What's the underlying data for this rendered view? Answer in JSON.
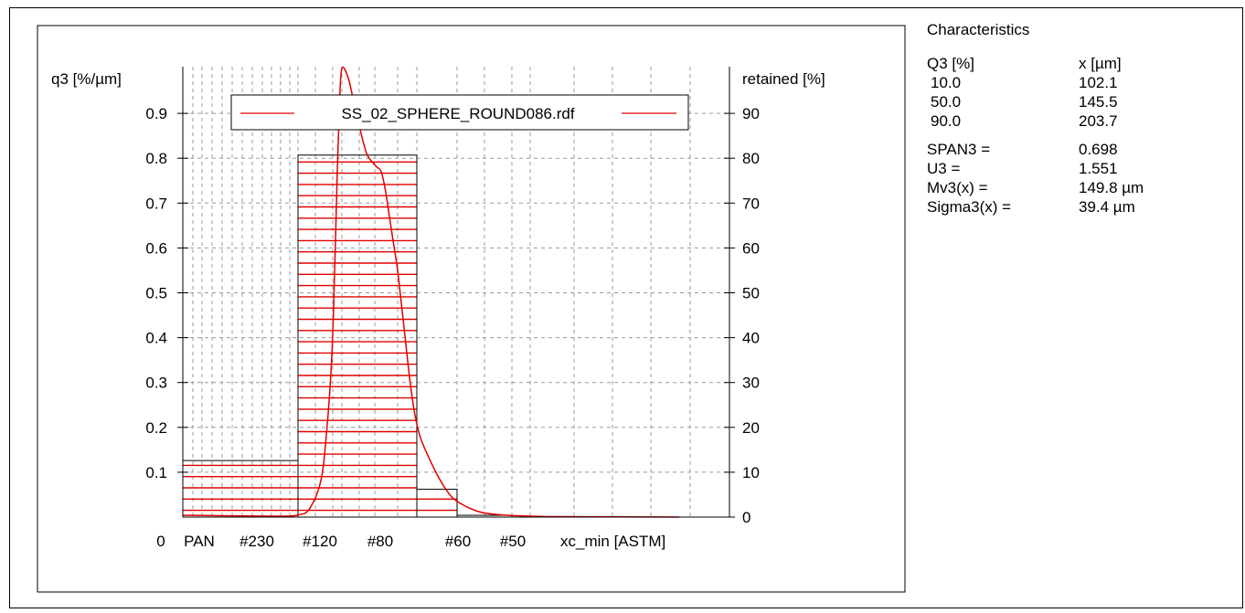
{
  "chart_data": {
    "type": "bar",
    "ylabel_left": "q3 [%/µm]",
    "ylabel_right": "retained [%]",
    "xlabel": "xc_min [ASTM]",
    "x_origin_label": "0",
    "left_ticks": [
      "0.1",
      "0.2",
      "0.3",
      "0.4",
      "0.5",
      "0.6",
      "0.7",
      "0.8",
      "0.9"
    ],
    "right_ticks": [
      "0",
      "10",
      "20",
      "30",
      "40",
      "50",
      "60",
      "70",
      "80",
      "90"
    ],
    "left_ylim": [
      0,
      1.0
    ],
    "right_ylim": [
      0,
      100
    ],
    "x_tick_labels": [
      "PAN",
      "#230",
      "#120",
      "#80",
      "#60",
      "#50"
    ],
    "bars_retained_percent": [
      {
        "from": "PAN",
        "to": "#120",
        "value": 12.6
      },
      {
        "from": "#120",
        "to": "#60",
        "value": 80.7
      },
      {
        "from": "#60",
        "to": "#50",
        "value": 6.2
      },
      {
        "from": "#50",
        "to": "end",
        "value": 0.4
      }
    ],
    "density_curve": {
      "name": "SS_02_SPHERE_ROUND086.rdf",
      "color": "#e00000",
      "x_particle_size_um": [
        0,
        60,
        75,
        85,
        95,
        100,
        105,
        110,
        115,
        120,
        125,
        130,
        135,
        140,
        145,
        150,
        155,
        160,
        165,
        170,
        175,
        180,
        185,
        190,
        195,
        200,
        205,
        210,
        215,
        220,
        230,
        240,
        250,
        270,
        290,
        320,
        400,
        700
      ],
      "q3": [
        0.004,
        0.002,
        0.005,
        0.02,
        0.08,
        0.18,
        0.35,
        0.55,
        0.75,
        0.92,
        1.0,
        0.98,
        0.92,
        0.86,
        0.81,
        0.79,
        0.78,
        0.77,
        0.73,
        0.67,
        0.61,
        0.55,
        0.49,
        0.43,
        0.37,
        0.31,
        0.26,
        0.22,
        0.18,
        0.15,
        0.1,
        0.06,
        0.035,
        0.012,
        0.005,
        0.003,
        0.001,
        0.0
      ]
    },
    "legend": {
      "position": "top",
      "entry": "SS_02_SPHERE_ROUND086.rdf"
    },
    "grid": true,
    "bar_fill": "red-horizontal-lines"
  },
  "stats": {
    "title": "Characteristics",
    "header": [
      "Q3 [%]",
      "x [µm]"
    ],
    "quantiles": [
      {
        "q": "10.0",
        "x": "102.1"
      },
      {
        "q": "50.0",
        "x": "145.5"
      },
      {
        "q": "90.0",
        "x": "203.7"
      }
    ],
    "params": [
      {
        "name": "SPAN3 =",
        "value": "0.698"
      },
      {
        "name": "U3 =",
        "value": "1.551"
      },
      {
        "name": "Mv3(x) =",
        "value": "149.8 µm"
      },
      {
        "name": "Sigma3(x) =",
        "value": "39.4 µm"
      }
    ]
  }
}
